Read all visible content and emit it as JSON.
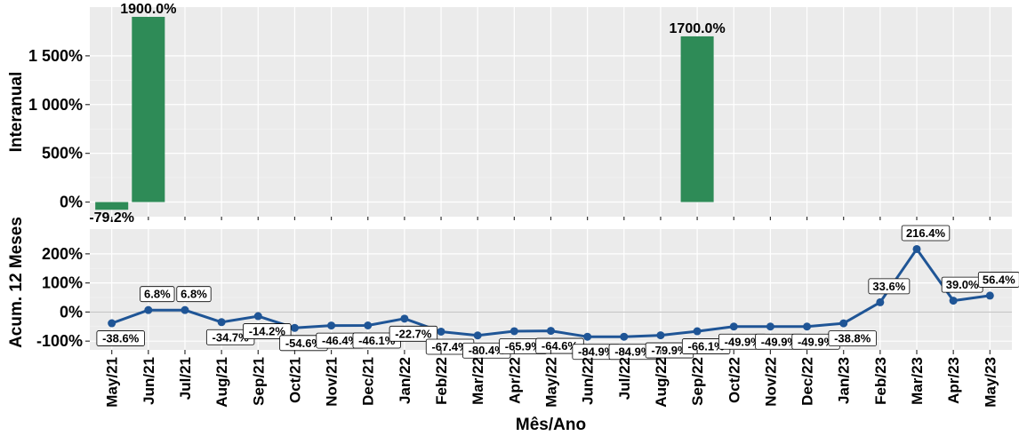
{
  "chart_data": [
    {
      "type": "bar",
      "ylabel": "Interanual",
      "ytick_labels": [
        "0%",
        "500%",
        "1 000%",
        "1 500%"
      ],
      "categories": [
        "May/21",
        "Jun/21",
        "Jul/21",
        "Aug/21",
        "Sep/21",
        "Oct/21",
        "Nov/21",
        "Dec/21",
        "Jan/22",
        "Feb/22",
        "Mar/22",
        "Apr/22",
        "May/22",
        "Jun/22",
        "Jul/22",
        "Aug/22",
        "Sep/22",
        "Oct/22",
        "Nov/22",
        "Dec/22",
        "Jan/23",
        "Feb/23",
        "Mar/23",
        "Apr/23",
        "May/23"
      ],
      "values": [
        -79.2,
        1900.0,
        null,
        null,
        null,
        null,
        null,
        null,
        null,
        null,
        null,
        null,
        null,
        null,
        null,
        null,
        1700.0,
        null,
        null,
        null,
        null,
        null,
        null,
        null,
        null
      ],
      "value_labels": [
        "-79.2%",
        "1900.0%",
        "",
        "",
        "",
        "",
        "",
        "",
        "",
        "",
        "",
        "",
        "",
        "",
        "",
        "",
        "1700.0%",
        "",
        "",
        "",
        "",
        "",
        "",
        "",
        ""
      ],
      "ylim": [
        -150,
        2000
      ],
      "bar_color": "#2e8b57",
      "grid": true
    },
    {
      "type": "line",
      "ylabel": "Acum. 12 Meses",
      "xlabel": "Mês/Ano",
      "ytick_labels": [
        "-100%",
        "0%",
        "100%",
        "200%"
      ],
      "categories": [
        "May/21",
        "Jun/21",
        "Jul/21",
        "Aug/21",
        "Sep/21",
        "Oct/21",
        "Nov/21",
        "Dec/21",
        "Jan/22",
        "Feb/22",
        "Mar/22",
        "Apr/22",
        "May/22",
        "Jun/22",
        "Jul/22",
        "Aug/22",
        "Sep/22",
        "Oct/22",
        "Nov/22",
        "Dec/22",
        "Jan/23",
        "Feb/23",
        "Mar/23",
        "Apr/23",
        "May/23"
      ],
      "values": [
        -38.6,
        6.8,
        6.8,
        -34.7,
        -14.2,
        -54.6,
        -46.4,
        -46.1,
        -22.7,
        -67.4,
        -80.4,
        -65.9,
        -64.6,
        -84.9,
        -84.9,
        -79.9,
        -66.1,
        -49.9,
        -49.9,
        -49.9,
        -38.8,
        33.6,
        216.4,
        39.0,
        56.4
      ],
      "value_labels": [
        "-38.6%",
        "6.8%",
        "6.8%",
        "-34.7%",
        "-14.2%",
        "-54.6%",
        "-46.4%",
        "-46.1%",
        "-22.7%",
        "-67.4%",
        "-80.4%",
        "-65.9%",
        "-64.6%",
        "-84.9%",
        "-84.9%",
        "-79.9%",
        "-66.1%",
        "-49.9%",
        "-49.9%",
        "-49.9%",
        "-38.8%",
        "33.6%",
        "216.4%",
        "39.0%",
        "56.4%"
      ],
      "ylim": [
        -130,
        285
      ],
      "line_color": "#1f5596",
      "grid": true
    }
  ]
}
